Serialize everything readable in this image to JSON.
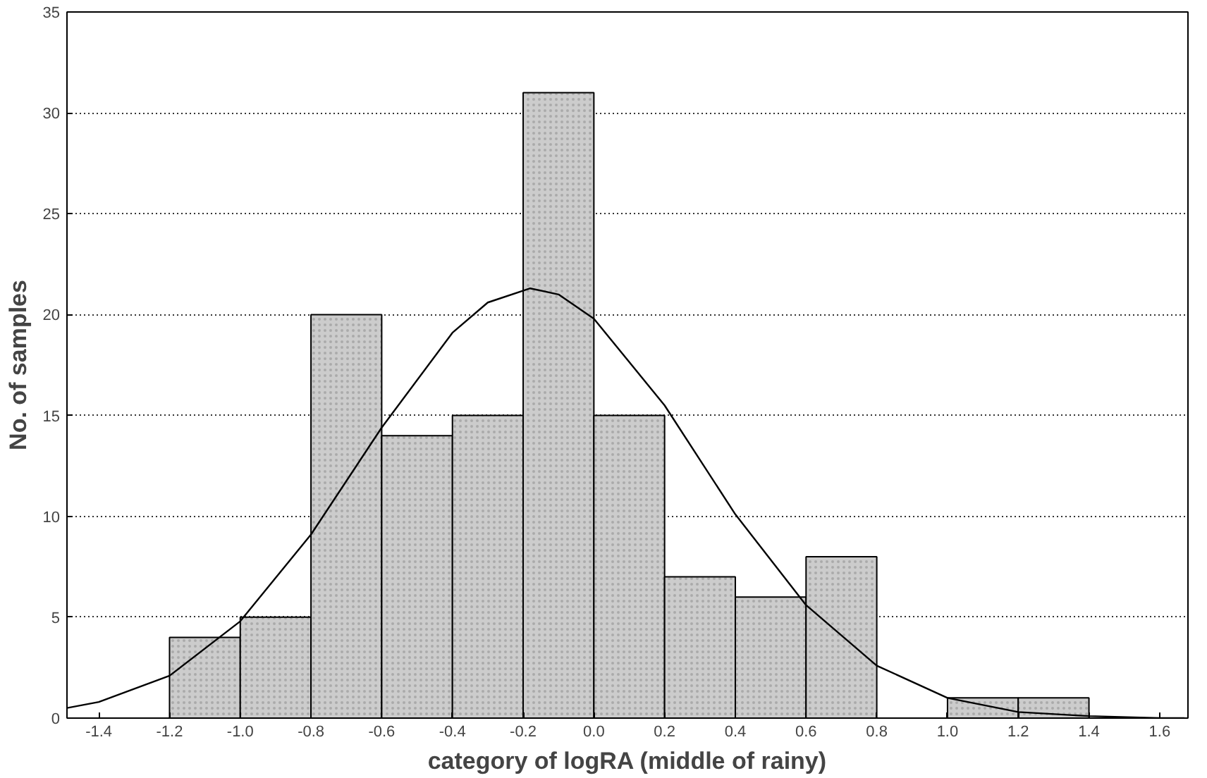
{
  "chart_data": {
    "type": "histogram",
    "xlabel": "category of logRA (middle of rainy)",
    "ylabel": "No. of samples",
    "bins": [
      -1.2,
      -1.0,
      -0.8,
      -0.6,
      -0.4,
      -0.2,
      0.0,
      0.2,
      0.4,
      0.6,
      0.8,
      1.0,
      1.2,
      1.4
    ],
    "values": [
      4,
      5,
      20,
      14,
      15,
      31,
      15,
      7,
      6,
      8,
      0,
      1,
      1
    ],
    "color": "#cccccc",
    "series": [
      {
        "type": "line",
        "color": "#000000",
        "x": [
          -1.49,
          -1.4,
          -1.2,
          -1.0,
          -0.8,
          -0.6,
          -0.4,
          -0.3,
          -0.18,
          -0.1,
          0.0,
          0.2,
          0.4,
          0.6,
          0.8,
          1.0,
          1.2,
          1.4,
          1.6,
          1.67
        ],
        "values": [
          0.5,
          0.8,
          2.1,
          4.8,
          9.1,
          14.4,
          19.1,
          20.6,
          21.3,
          21.0,
          19.8,
          15.5,
          10.1,
          5.6,
          2.6,
          1.0,
          0.3,
          0.1,
          0.0,
          0.0
        ]
      }
    ],
    "xlim": [
      -1.49,
      1.68
    ],
    "ylim": [
      0,
      35
    ],
    "xticks": [
      -1.4,
      -1.2,
      {
        "value": -1.0,
        "label": "-1.0"
      },
      -0.8,
      -0.6,
      -0.4,
      -0.2,
      {
        "value": 0.0,
        "label": "0.0"
      },
      0.2,
      0.4,
      0.6,
      0.8,
      {
        "value": 1.0,
        "label": "1.0"
      },
      1.2,
      1.4,
      1.6
    ],
    "yticks": [
      0,
      5,
      10,
      15,
      20,
      25,
      30,
      35
    ],
    "grid": "y",
    "line_style": "solid"
  }
}
